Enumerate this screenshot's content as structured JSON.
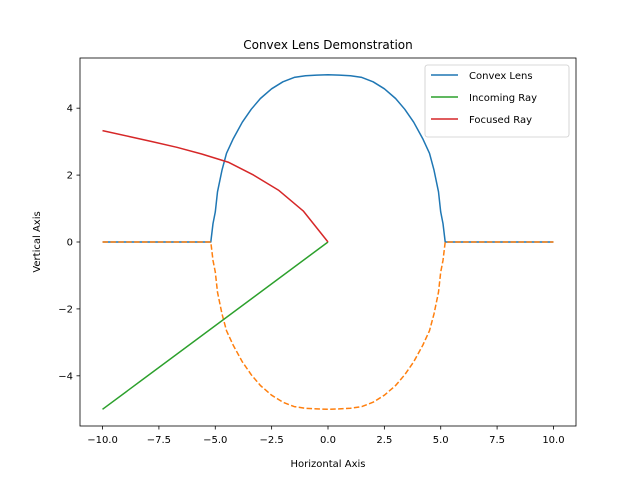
{
  "chart_data": {
    "type": "line",
    "title": "Convex Lens Demonstration",
    "xlabel": "Horizontal Axis",
    "ylabel": "Vertical Axis",
    "xlim": [
      -11,
      11
    ],
    "ylim": [
      -5.5,
      5.5
    ],
    "x_ticks": [
      -10,
      -7.5,
      -5,
      -2.5,
      0,
      2.5,
      5,
      7.5,
      10
    ],
    "x_tick_labels": [
      "−10.0",
      "−7.5",
      "−5.0",
      "−2.5",
      "0.0",
      "2.5",
      "5.0",
      "7.5",
      "10.0"
    ],
    "y_ticks": [
      -4,
      -2,
      0,
      2,
      4
    ],
    "y_tick_labels": [
      "−4",
      "−2",
      "0",
      "2",
      "4"
    ],
    "grid": false,
    "legend_position": "top-right",
    "series": [
      {
        "name": "Convex Lens",
        "color": "#1f77b4",
        "style": "solid",
        "in_legend": true,
        "x": [
          -10,
          -5.2,
          -5.1,
          -5.0,
          -4.9,
          -4.7,
          -4.5,
          -4.2,
          -3.8,
          -3.4,
          -3.0,
          -2.5,
          -2.0,
          -1.5,
          -1.0,
          -0.5,
          0,
          0.5,
          1.0,
          1.5,
          2.0,
          2.5,
          3.0,
          3.4,
          3.8,
          4.2,
          4.5,
          4.7,
          4.9,
          5.0,
          5.1,
          5.2,
          10
        ],
        "y": [
          0,
          0,
          0.55,
          0.9,
          1.5,
          2.15,
          2.65,
          3.09,
          3.58,
          3.97,
          4.29,
          4.58,
          4.79,
          4.92,
          4.97,
          4.99,
          5.0,
          4.99,
          4.97,
          4.92,
          4.79,
          4.58,
          4.29,
          3.97,
          3.58,
          3.09,
          2.65,
          2.15,
          1.5,
          0.9,
          0.55,
          0,
          0
        ]
      },
      {
        "name": "",
        "color": "#ff7f0e",
        "style": "dashed",
        "in_legend": false,
        "x": [
          -10,
          -5.2,
          -5.1,
          -5.0,
          -4.9,
          -4.7,
          -4.5,
          -4.2,
          -3.8,
          -3.4,
          -3.0,
          -2.5,
          -2.0,
          -1.5,
          -1.0,
          -0.5,
          0,
          0.5,
          1.0,
          1.5,
          2.0,
          2.5,
          3.0,
          3.4,
          3.8,
          4.2,
          4.5,
          4.7,
          4.9,
          5.0,
          5.1,
          5.2,
          10
        ],
        "y": [
          0,
          0,
          -0.55,
          -0.9,
          -1.5,
          -2.15,
          -2.65,
          -3.09,
          -3.58,
          -3.97,
          -4.29,
          -4.58,
          -4.79,
          -4.92,
          -4.97,
          -4.99,
          -5.0,
          -4.99,
          -4.97,
          -4.92,
          -4.79,
          -4.58,
          -4.29,
          -3.97,
          -3.58,
          -3.09,
          -2.65,
          -2.15,
          -1.5,
          -0.9,
          -0.55,
          0,
          0
        ]
      },
      {
        "name": "Incoming Ray",
        "color": "#2ca02c",
        "style": "solid",
        "in_legend": true,
        "x": [
          -10,
          0
        ],
        "y": [
          -5,
          0
        ]
      },
      {
        "name": "Focused Ray",
        "color": "#d62728",
        "style": "solid",
        "in_legend": true,
        "x": [
          -10,
          -8.8,
          -7.8,
          -6.7,
          -5.6,
          -4.4,
          -3.3,
          -2.2,
          -1.1,
          0
        ],
        "y": [
          3.33,
          3.15,
          3.0,
          2.83,
          2.63,
          2.38,
          2.0,
          1.55,
          0.93,
          0
        ]
      }
    ]
  }
}
